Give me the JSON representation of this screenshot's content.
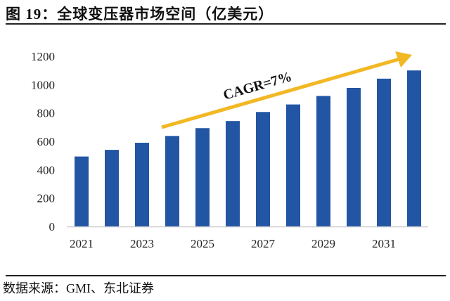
{
  "title": "图 19：全球变压器市场空间（亿美元）",
  "source": "数据来源：GMI、东北证券",
  "chart_data": {
    "type": "bar",
    "title": "",
    "xlabel": "",
    "ylabel": "",
    "categories": [
      "2021",
      "2022",
      "2023",
      "2024",
      "2025",
      "2026",
      "2027",
      "2028",
      "2029",
      "2030",
      "2031",
      "2032"
    ],
    "x_tick_labels": [
      "2021",
      "2023",
      "2025",
      "2027",
      "2029",
      "2031"
    ],
    "values": [
      493,
      540,
      590,
      638,
      693,
      743,
      807,
      860,
      920,
      977,
      1042,
      1100
    ],
    "ylim": [
      0,
      1200
    ],
    "y_ticks": [
      0,
      200,
      400,
      600,
      800,
      1000,
      1200
    ],
    "grid": false,
    "bar_color": "#2255a4",
    "annotation": {
      "text": "CAGR=7%",
      "arrow_color": "#f2b824"
    }
  }
}
